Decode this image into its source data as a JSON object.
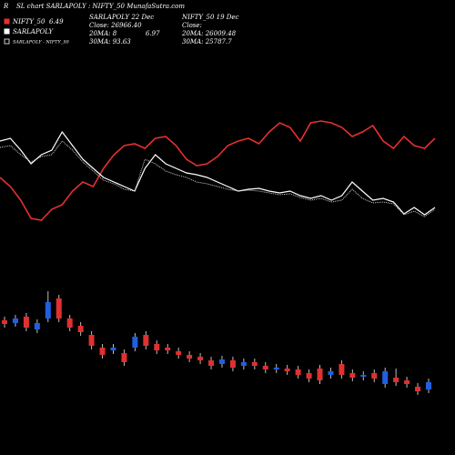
{
  "chart_data": {
    "type": "line-candlestick",
    "corner_label": "R",
    "title": "SL chart SARLAPOLY : NIFTY_50 MunafaSutra.com",
    "legend_value": "6.49",
    "info": [
      [
        "SARLAPOLY 22 Dec",
        "Close: 26966.40",
        "20MA: 8",
        "6.97",
        "30MA: 93.63"
      ],
      [
        "NIFTY_50 19 Dec",
        "Close:",
        "20MA: 26009.48",
        "30MA: 25787.7"
      ]
    ],
    "x": [
      0,
      1,
      2,
      3,
      4,
      5,
      6,
      7,
      8,
      9,
      10,
      11,
      12,
      13,
      14,
      15,
      16,
      17,
      18,
      19,
      20,
      21,
      22,
      23,
      24,
      25,
      26,
      27,
      28,
      29,
      30,
      31,
      32,
      33,
      34,
      35,
      36,
      37,
      38,
      39,
      40,
      41,
      42
    ],
    "xlim": [
      0,
      42
    ],
    "ylim": [
      0,
      130
    ],
    "series": [
      {
        "name": "NIFTY_50",
        "color": "#e53030",
        "style": "solid",
        "values": [
          55,
          45,
          30,
          10,
          8,
          20,
          25,
          40,
          50,
          45,
          65,
          80,
          90,
          92,
          87,
          98,
          100,
          90,
          75,
          68,
          70,
          78,
          90,
          95,
          98,
          92,
          105,
          115,
          110,
          95,
          115,
          117,
          115,
          110,
          100,
          105,
          112,
          95,
          87,
          100,
          90,
          87,
          98
        ]
      },
      {
        "name": "SARLAPOLY",
        "color": "#ffffff",
        "style": "solid",
        "values": [
          95,
          98,
          85,
          70,
          80,
          85,
          105,
          90,
          75,
          65,
          55,
          50,
          45,
          40,
          65,
          80,
          70,
          65,
          60,
          58,
          55,
          50,
          45,
          40,
          42,
          43,
          40,
          38,
          40,
          35,
          32,
          35,
          30,
          35,
          50,
          40,
          30,
          32,
          28,
          15,
          22,
          14,
          22
        ]
      },
      {
        "name": "SARLAPOLY - NIFTY_50",
        "color": "#cccccc",
        "style": "dotted",
        "values": [
          88,
          90,
          80,
          72,
          78,
          80,
          95,
          85,
          72,
          62,
          52,
          48,
          42,
          40,
          75,
          70,
          62,
          58,
          55,
          50,
          48,
          45,
          42,
          40,
          41,
          40,
          38,
          36,
          37,
          33,
          30,
          32,
          28,
          30,
          42,
          32,
          27,
          28,
          26,
          14,
          18,
          12,
          20
        ]
      }
    ],
    "candles": {
      "ylim": [
        0,
        200
      ],
      "open": [
        148,
        145,
        152,
        138,
        150,
        172,
        150,
        142,
        132,
        118,
        115,
        112,
        118,
        132,
        122,
        118,
        114,
        110,
        108,
        104,
        100,
        104,
        98,
        102,
        98,
        94,
        95,
        94,
        90,
        95,
        88,
        100,
        90,
        86,
        90,
        78,
        85,
        82,
        75,
        72
      ],
      "close": [
        144,
        150,
        140,
        145,
        168,
        150,
        140,
        135,
        120,
        110,
        118,
        102,
        130,
        120,
        115,
        115,
        110,
        106,
        104,
        98,
        105,
        96,
        102,
        98,
        94,
        96,
        92,
        88,
        84,
        82,
        92,
        88,
        85,
        88,
        84,
        92,
        80,
        78,
        70,
        80
      ],
      "high": [
        152,
        154,
        156,
        149,
        180,
        176,
        154,
        146,
        136,
        122,
        122,
        116,
        134,
        136,
        126,
        122,
        118,
        114,
        112,
        108,
        109,
        108,
        106,
        106,
        102,
        100,
        99,
        98,
        94,
        99,
        96,
        104,
        94,
        92,
        94,
        96,
        95,
        86,
        79,
        84
      ],
      "low": [
        140,
        141,
        136,
        134,
        146,
        146,
        136,
        131,
        116,
        106,
        111,
        98,
        114,
        116,
        111,
        111,
        106,
        102,
        100,
        94,
        96,
        92,
        94,
        94,
        90,
        90,
        88,
        84,
        80,
        78,
        84,
        84,
        81,
        82,
        80,
        74,
        76,
        74,
        66,
        68
      ]
    },
    "up_color": "#2060e0",
    "down_color": "#e03030"
  }
}
